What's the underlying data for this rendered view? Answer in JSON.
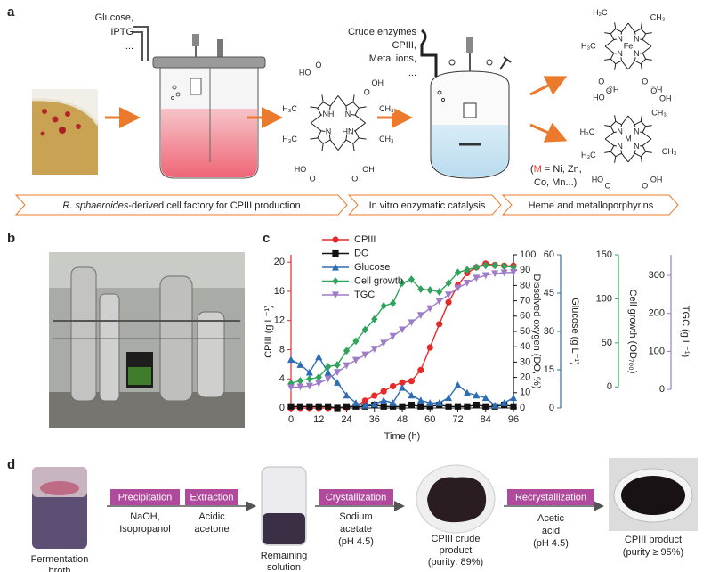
{
  "panel_a": {
    "label": "a",
    "feed_1": [
      "Glucose,",
      "IPTG",
      "..."
    ],
    "feed_2": [
      "Crude enzymes",
      "CPIII,",
      "Metal ions,",
      "..."
    ],
    "cpiii_atoms": [
      "HO",
      "O",
      "OH",
      "O",
      "H₃C",
      "CH₃",
      "NH",
      "N",
      "N",
      "HN",
      "H₃C",
      "CH₃",
      "HO",
      "O",
      "O",
      "OH"
    ],
    "heme_atoms": [
      "H₂C",
      "CH₃",
      "H₃C",
      "N",
      "N",
      "Fe",
      "N",
      "N",
      "O",
      "OH",
      "O",
      "OH"
    ],
    "metal_atoms": [
      "HO",
      "O",
      "CH₃",
      "O",
      "OH",
      "H₃C",
      "N",
      "N",
      "M",
      "N",
      "N",
      "H₃C",
      "CH₃",
      "HO",
      "O",
      "O",
      "OH"
    ],
    "metal_note": {
      "open": "(",
      "metal": "M",
      "line_1": " = Ni, Zn,",
      "line_2": "Co, Mn...)"
    },
    "stages": [
      {
        "species": "R. sphaeroides",
        "rest": "-derived cell factory for CPIII production"
      },
      {
        "text": "In vitro enzymatic catalysis"
      },
      {
        "text": "Heme and metalloporphyrins"
      }
    ]
  },
  "panel_b": {
    "label": "b"
  },
  "chart_data": {
    "panel_label": "c",
    "type": "line",
    "xlabel": "Time (h)",
    "x": [
      0,
      4,
      8,
      12,
      16,
      20,
      24,
      28,
      32,
      36,
      40,
      44,
      48,
      52,
      56,
      60,
      64,
      68,
      72,
      76,
      80,
      84,
      88,
      92,
      96
    ],
    "xlim": [
      0,
      96
    ],
    "xticks": [
      0,
      12,
      24,
      36,
      48,
      60,
      72,
      84,
      96
    ],
    "ylabel": "CPIII (g L⁻¹)",
    "ylim": [
      0,
      21
    ],
    "yticks": [
      0,
      4,
      8,
      12,
      16,
      20
    ],
    "y2label": "Dissolved oxygen (DO, %)",
    "y2lim": [
      0,
      100
    ],
    "y2ticks": [
      0,
      10,
      20,
      30,
      40,
      50,
      60,
      70,
      80,
      90,
      100
    ],
    "y3label": "Glucose (g L⁻¹)",
    "y3lim": [
      0,
      60
    ],
    "y3ticks": [
      0,
      15,
      30,
      45,
      60
    ],
    "y4label": "Cell growth (OD₇₀₀)",
    "y4lim": [
      -24,
      150
    ],
    "y4ticks": [
      0,
      50,
      100,
      150
    ],
    "y5label": "TGC (g L⁻¹)",
    "y5lim": [
      -49,
      354
    ],
    "y5ticks": [
      0,
      100,
      200,
      300
    ],
    "legend": "upper left",
    "series": [
      {
        "name": "CPIII",
        "color": "#e52a2a",
        "marker": "circle",
        "values": [
          0,
          0,
          0,
          0,
          0,
          0,
          0.1,
          0.3,
          1.0,
          1.7,
          2.3,
          3.0,
          3.5,
          3.7,
          5.2,
          8.3,
          11.5,
          14.5,
          16.8,
          18.5,
          19.3,
          19.8,
          19.6,
          19.5,
          19.5
        ]
      },
      {
        "name": "DO",
        "color": "#111111",
        "marker": "square",
        "axis": "y2",
        "values": [
          1,
          1,
          1,
          1,
          1,
          0,
          1,
          1,
          1,
          2,
          1,
          1,
          1,
          2,
          1,
          1,
          2,
          1,
          1,
          1,
          2,
          1,
          1,
          2,
          1
        ]
      },
      {
        "name": "Glucose",
        "color": "#2e6db4",
        "marker": "triangle",
        "axis": "y3",
        "values": [
          19,
          17,
          14,
          20,
          14,
          10,
          5,
          2,
          1,
          1.5,
          3,
          2,
          8,
          5,
          3,
          2,
          2,
          4,
          9,
          6,
          5,
          4,
          1,
          2,
          4
        ]
      },
      {
        "name": "Cell growth",
        "color": "#2fa35a",
        "marker": "diamond",
        "axis": "y4",
        "values": [
          4,
          7,
          9,
          11,
          23,
          25,
          41,
          52,
          65,
          77,
          92,
          95,
          118,
          122,
          111,
          110,
          108,
          118,
          130,
          133,
          136,
          138,
          138,
          137,
          136
        ]
      },
      {
        "name": "TGC",
        "color": "#9d7cc8",
        "marker": "triangle-down",
        "axis": "y5",
        "values": [
          5,
          7,
          9,
          16,
          28,
          45,
          63,
          77,
          91,
          106,
          122,
          140,
          157,
          176,
          195,
          213,
          232,
          249,
          267,
          280,
          293,
          300,
          305,
          307,
          308
        ]
      }
    ]
  },
  "panel_d": {
    "label": "d",
    "broth": [
      "Fermentation",
      "broth"
    ],
    "precipitation": {
      "name": "Precipitation",
      "reagents": [
        "NaOH,",
        "Isopropanol"
      ]
    },
    "extraction": {
      "name": "Extraction",
      "reagents": [
        "Acidic",
        "acetone"
      ]
    },
    "remaining": [
      "Remaining",
      "solution"
    ],
    "crystallization": {
      "name": "Crystallization",
      "reagents": [
        "Sodium",
        "acetate",
        "(pH 4.5)"
      ]
    },
    "crude": [
      "CPIII crude",
      "product",
      "(purity: 89%)"
    ],
    "recrystallization": {
      "name": "Recrystallization",
      "reagents": [
        "Acetic",
        "acid",
        "(pH 4.5)"
      ]
    },
    "product": [
      "CPIII product",
      "(purity ≥ 95%)"
    ]
  }
}
